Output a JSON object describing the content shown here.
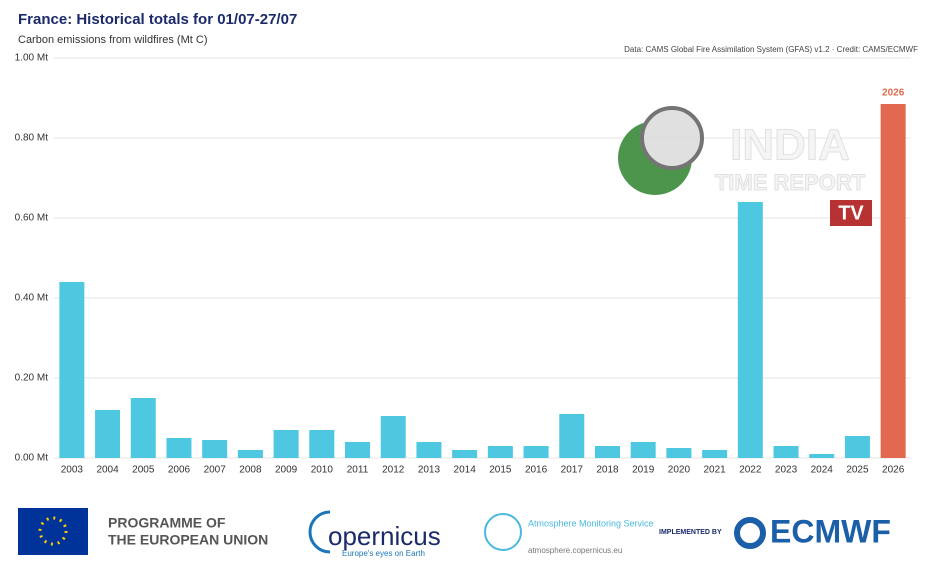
{
  "chart_data": {
    "type": "bar",
    "title": "France: Historical totals for 01/07-27/07",
    "subtitle": "Carbon emissions from wildfires (Mt C)",
    "credit": "Data: CAMS Global Fire Assimilation System (GFAS) v1.2 · Credit: CAMS/ECMWF",
    "categories": [
      "2003",
      "2004",
      "2005",
      "2006",
      "2007",
      "2008",
      "2009",
      "2010",
      "2011",
      "2012",
      "2013",
      "2014",
      "2015",
      "2016",
      "2017",
      "2018",
      "2019",
      "2020",
      "2021",
      "2022",
      "2023",
      "2024",
      "2025",
      "2026"
    ],
    "values": [
      0.44,
      0.12,
      0.15,
      0.05,
      0.045,
      0.02,
      0.07,
      0.07,
      0.04,
      0.105,
      0.04,
      0.02,
      0.03,
      0.03,
      0.11,
      0.03,
      0.04,
      0.025,
      0.02,
      0.64,
      0.03,
      0.01,
      0.055,
      0.885
    ],
    "bar_colors": [
      "#4dc8e0",
      "#4dc8e0",
      "#4dc8e0",
      "#4dc8e0",
      "#4dc8e0",
      "#4dc8e0",
      "#4dc8e0",
      "#4dc8e0",
      "#4dc8e0",
      "#4dc8e0",
      "#4dc8e0",
      "#4dc8e0",
      "#4dc8e0",
      "#4dc8e0",
      "#4dc8e0",
      "#4dc8e0",
      "#4dc8e0",
      "#4dc8e0",
      "#4dc8e0",
      "#4dc8e0",
      "#4dc8e0",
      "#4dc8e0",
      "#4dc8e0",
      "#e2694f"
    ],
    "ylim": [
      0,
      1
    ],
    "yticks": [
      {
        "value": 0,
        "label": "0.00 Mt"
      },
      {
        "value": 0.2,
        "label": "0.20 Mt"
      },
      {
        "value": 0.4,
        "label": "0.40 Mt"
      },
      {
        "value": 0.6,
        "label": "0.60 Mt"
      },
      {
        "value": 0.8,
        "label": "0.80 Mt"
      },
      {
        "value": 1,
        "label": "1.00 Mt"
      }
    ],
    "grid": true
  },
  "watermark": {
    "line1": "INDIA",
    "line2": "TIME REPORT",
    "badge": "TV"
  },
  "footer": {
    "eu": "PROGRAMME OF THE EUROPEAN UNION",
    "copernicus": "opernicus",
    "copernicus_tagline": "Europe's eyes on Earth",
    "cams": "Atmosphere Monitoring Service",
    "cams_url": "atmosphere.copernicus.eu",
    "implemented": "IMPLEMENTED BY",
    "ecmwf": "ECMWF"
  }
}
